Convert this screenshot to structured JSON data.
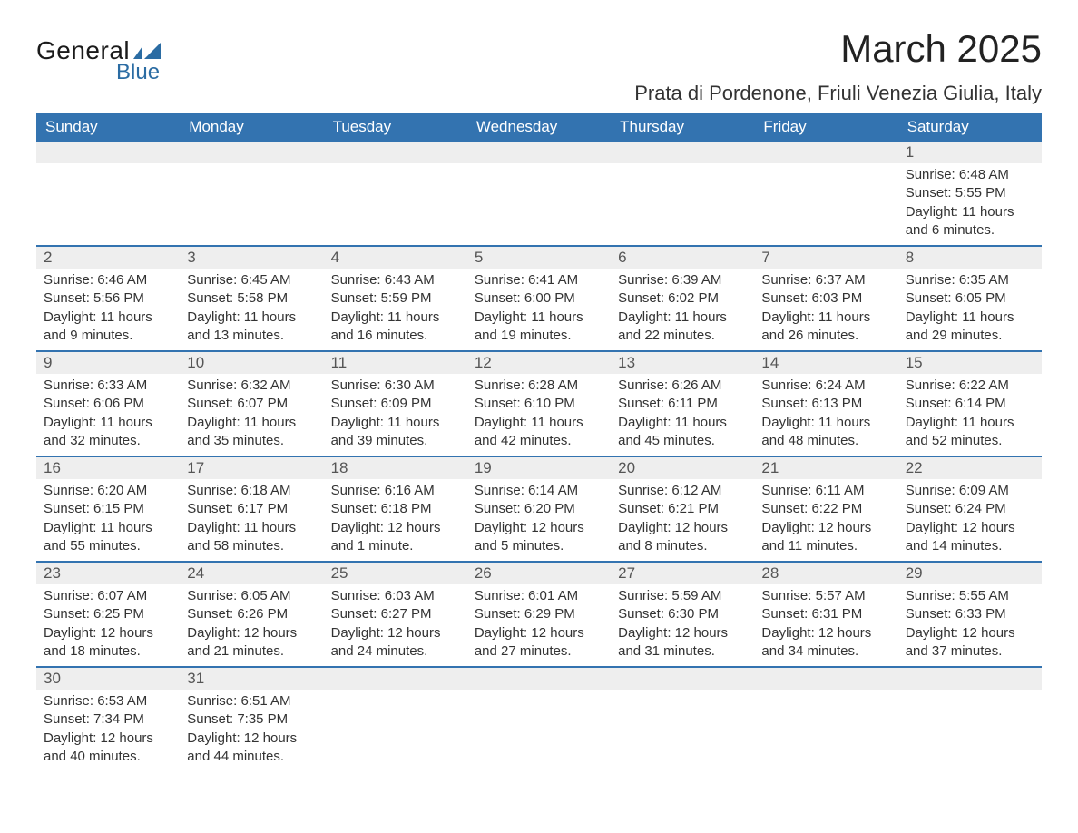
{
  "logo": {
    "general": "General",
    "blue": "Blue",
    "flag_color": "#2b6ca3"
  },
  "title": "March 2025",
  "location": "Prata di Pordenone, Friuli Venezia Giulia, Italy",
  "header_bg": "#3373b0",
  "header_fg": "#ffffff",
  "daynum_bg": "#eeeeee",
  "border_color": "#3373b0",
  "text_color": "#333333",
  "weekdays": [
    "Sunday",
    "Monday",
    "Tuesday",
    "Wednesday",
    "Thursday",
    "Friday",
    "Saturday"
  ],
  "weeks": [
    [
      null,
      null,
      null,
      null,
      null,
      null,
      {
        "n": "1",
        "sr": "Sunrise: 6:48 AM",
        "ss": "Sunset: 5:55 PM",
        "dl": "Daylight: 11 hours and 6 minutes."
      }
    ],
    [
      {
        "n": "2",
        "sr": "Sunrise: 6:46 AM",
        "ss": "Sunset: 5:56 PM",
        "dl": "Daylight: 11 hours and 9 minutes."
      },
      {
        "n": "3",
        "sr": "Sunrise: 6:45 AM",
        "ss": "Sunset: 5:58 PM",
        "dl": "Daylight: 11 hours and 13 minutes."
      },
      {
        "n": "4",
        "sr": "Sunrise: 6:43 AM",
        "ss": "Sunset: 5:59 PM",
        "dl": "Daylight: 11 hours and 16 minutes."
      },
      {
        "n": "5",
        "sr": "Sunrise: 6:41 AM",
        "ss": "Sunset: 6:00 PM",
        "dl": "Daylight: 11 hours and 19 minutes."
      },
      {
        "n": "6",
        "sr": "Sunrise: 6:39 AM",
        "ss": "Sunset: 6:02 PM",
        "dl": "Daylight: 11 hours and 22 minutes."
      },
      {
        "n": "7",
        "sr": "Sunrise: 6:37 AM",
        "ss": "Sunset: 6:03 PM",
        "dl": "Daylight: 11 hours and 26 minutes."
      },
      {
        "n": "8",
        "sr": "Sunrise: 6:35 AM",
        "ss": "Sunset: 6:05 PM",
        "dl": "Daylight: 11 hours and 29 minutes."
      }
    ],
    [
      {
        "n": "9",
        "sr": "Sunrise: 6:33 AM",
        "ss": "Sunset: 6:06 PM",
        "dl": "Daylight: 11 hours and 32 minutes."
      },
      {
        "n": "10",
        "sr": "Sunrise: 6:32 AM",
        "ss": "Sunset: 6:07 PM",
        "dl": "Daylight: 11 hours and 35 minutes."
      },
      {
        "n": "11",
        "sr": "Sunrise: 6:30 AM",
        "ss": "Sunset: 6:09 PM",
        "dl": "Daylight: 11 hours and 39 minutes."
      },
      {
        "n": "12",
        "sr": "Sunrise: 6:28 AM",
        "ss": "Sunset: 6:10 PM",
        "dl": "Daylight: 11 hours and 42 minutes."
      },
      {
        "n": "13",
        "sr": "Sunrise: 6:26 AM",
        "ss": "Sunset: 6:11 PM",
        "dl": "Daylight: 11 hours and 45 minutes."
      },
      {
        "n": "14",
        "sr": "Sunrise: 6:24 AM",
        "ss": "Sunset: 6:13 PM",
        "dl": "Daylight: 11 hours and 48 minutes."
      },
      {
        "n": "15",
        "sr": "Sunrise: 6:22 AM",
        "ss": "Sunset: 6:14 PM",
        "dl": "Daylight: 11 hours and 52 minutes."
      }
    ],
    [
      {
        "n": "16",
        "sr": "Sunrise: 6:20 AM",
        "ss": "Sunset: 6:15 PM",
        "dl": "Daylight: 11 hours and 55 minutes."
      },
      {
        "n": "17",
        "sr": "Sunrise: 6:18 AM",
        "ss": "Sunset: 6:17 PM",
        "dl": "Daylight: 11 hours and 58 minutes."
      },
      {
        "n": "18",
        "sr": "Sunrise: 6:16 AM",
        "ss": "Sunset: 6:18 PM",
        "dl": "Daylight: 12 hours and 1 minute."
      },
      {
        "n": "19",
        "sr": "Sunrise: 6:14 AM",
        "ss": "Sunset: 6:20 PM",
        "dl": "Daylight: 12 hours and 5 minutes."
      },
      {
        "n": "20",
        "sr": "Sunrise: 6:12 AM",
        "ss": "Sunset: 6:21 PM",
        "dl": "Daylight: 12 hours and 8 minutes."
      },
      {
        "n": "21",
        "sr": "Sunrise: 6:11 AM",
        "ss": "Sunset: 6:22 PM",
        "dl": "Daylight: 12 hours and 11 minutes."
      },
      {
        "n": "22",
        "sr": "Sunrise: 6:09 AM",
        "ss": "Sunset: 6:24 PM",
        "dl": "Daylight: 12 hours and 14 minutes."
      }
    ],
    [
      {
        "n": "23",
        "sr": "Sunrise: 6:07 AM",
        "ss": "Sunset: 6:25 PM",
        "dl": "Daylight: 12 hours and 18 minutes."
      },
      {
        "n": "24",
        "sr": "Sunrise: 6:05 AM",
        "ss": "Sunset: 6:26 PM",
        "dl": "Daylight: 12 hours and 21 minutes."
      },
      {
        "n": "25",
        "sr": "Sunrise: 6:03 AM",
        "ss": "Sunset: 6:27 PM",
        "dl": "Daylight: 12 hours and 24 minutes."
      },
      {
        "n": "26",
        "sr": "Sunrise: 6:01 AM",
        "ss": "Sunset: 6:29 PM",
        "dl": "Daylight: 12 hours and 27 minutes."
      },
      {
        "n": "27",
        "sr": "Sunrise: 5:59 AM",
        "ss": "Sunset: 6:30 PM",
        "dl": "Daylight: 12 hours and 31 minutes."
      },
      {
        "n": "28",
        "sr": "Sunrise: 5:57 AM",
        "ss": "Sunset: 6:31 PM",
        "dl": "Daylight: 12 hours and 34 minutes."
      },
      {
        "n": "29",
        "sr": "Sunrise: 5:55 AM",
        "ss": "Sunset: 6:33 PM",
        "dl": "Daylight: 12 hours and 37 minutes."
      }
    ],
    [
      {
        "n": "30",
        "sr": "Sunrise: 6:53 AM",
        "ss": "Sunset: 7:34 PM",
        "dl": "Daylight: 12 hours and 40 minutes."
      },
      {
        "n": "31",
        "sr": "Sunrise: 6:51 AM",
        "ss": "Sunset: 7:35 PM",
        "dl": "Daylight: 12 hours and 44 minutes."
      },
      null,
      null,
      null,
      null,
      null
    ]
  ]
}
